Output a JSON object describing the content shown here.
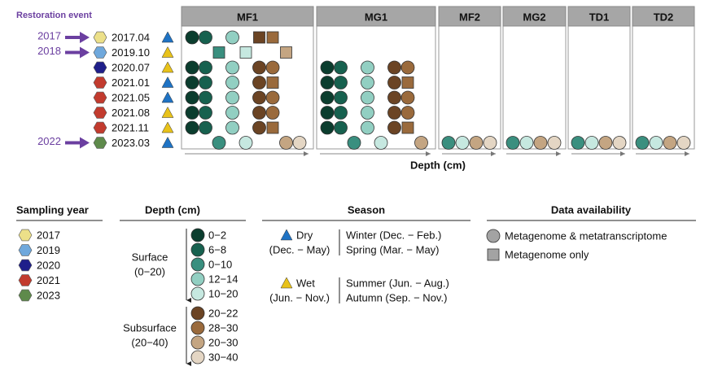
{
  "restoration": {
    "title": "Restoration event",
    "title_color": "#6b3fa0",
    "arrow_color": "#6b3fa0",
    "events": [
      {
        "label": "2017",
        "row": 0
      },
      {
        "label": "2018",
        "row": 1
      },
      {
        "label": "2022",
        "row": 7
      }
    ]
  },
  "rows": [
    {
      "date": "2017.04",
      "year": "2017",
      "season": "dry"
    },
    {
      "date": "2019.10",
      "year": "2019",
      "season": "wet"
    },
    {
      "date": "2020.07",
      "year": "2020",
      "season": "wet"
    },
    {
      "date": "2021.01",
      "year": "2021",
      "season": "dry"
    },
    {
      "date": "2021.05",
      "year": "2021",
      "season": "dry"
    },
    {
      "date": "2021.08",
      "year": "2021",
      "season": "wet"
    },
    {
      "date": "2021.11",
      "year": "2021",
      "season": "wet"
    },
    {
      "date": "2023.03",
      "year": "2023",
      "season": "dry"
    }
  ],
  "year_colors": {
    "2017": "#ece089",
    "2019": "#6fa8dc",
    "2020": "#1f1f8a",
    "2021": "#c23b2e",
    "2023": "#5e8a4b"
  },
  "season_colors": {
    "dry": "#1f73c4",
    "wet": "#e8c21a"
  },
  "depth_colors": {
    "0-2": "#0b3d2e",
    "6-8": "#17614f",
    "0-10": "#3a8f7f",
    "12-14": "#92cfc2",
    "10-20": "#c6e8e0",
    "20-22": "#6b4424",
    "28-30": "#9a6a3c",
    "20-30": "#c4a582",
    "30-40": "#e4d6c4"
  },
  "sites": [
    {
      "name": "MF1",
      "width": "wide",
      "data": [
        [
          [
            "0-2",
            "c"
          ],
          [
            "6-8",
            "c"
          ],
          null,
          [
            "12-14",
            "c"
          ],
          null,
          [
            "20-22",
            "s"
          ],
          [
            "28-30",
            "s"
          ],
          null,
          null
        ],
        [
          null,
          null,
          [
            "0-10",
            "s"
          ],
          null,
          [
            "10-20",
            "s"
          ],
          null,
          null,
          [
            "20-30",
            "s"
          ],
          null
        ],
        [
          [
            "0-2",
            "c"
          ],
          [
            "6-8",
            "c"
          ],
          null,
          [
            "12-14",
            "c"
          ],
          null,
          [
            "20-22",
            "c"
          ],
          [
            "28-30",
            "c"
          ],
          null,
          null
        ],
        [
          [
            "0-2",
            "c"
          ],
          [
            "6-8",
            "c"
          ],
          null,
          [
            "12-14",
            "c"
          ],
          null,
          [
            "20-22",
            "c"
          ],
          [
            "28-30",
            "s"
          ],
          null,
          null
        ],
        [
          [
            "0-2",
            "c"
          ],
          [
            "6-8",
            "c"
          ],
          null,
          [
            "12-14",
            "c"
          ],
          null,
          [
            "20-22",
            "c"
          ],
          [
            "28-30",
            "c"
          ],
          null,
          null
        ],
        [
          [
            "0-2",
            "c"
          ],
          [
            "6-8",
            "c"
          ],
          null,
          [
            "12-14",
            "c"
          ],
          null,
          [
            "20-22",
            "c"
          ],
          [
            "28-30",
            "c"
          ],
          null,
          null
        ],
        [
          [
            "0-2",
            "c"
          ],
          [
            "6-8",
            "c"
          ],
          null,
          [
            "12-14",
            "c"
          ],
          null,
          [
            "20-22",
            "c"
          ],
          [
            "28-30",
            "s"
          ],
          null,
          null
        ],
        [
          null,
          null,
          [
            "0-10",
            "c"
          ],
          null,
          [
            "10-20",
            "c"
          ],
          null,
          null,
          [
            "20-30",
            "c"
          ],
          [
            "30-40",
            "c"
          ]
        ]
      ]
    },
    {
      "name": "MG1",
      "width": "wide",
      "data": [
        [
          null,
          null,
          null,
          null,
          null,
          null,
          null,
          null,
          null
        ],
        [
          null,
          null,
          null,
          null,
          null,
          null,
          null,
          null,
          null
        ],
        [
          [
            "0-2",
            "c"
          ],
          [
            "6-8",
            "c"
          ],
          null,
          [
            "12-14",
            "c"
          ],
          null,
          [
            "20-22",
            "c"
          ],
          [
            "28-30",
            "c"
          ],
          null,
          null
        ],
        [
          [
            "0-2",
            "c"
          ],
          [
            "6-8",
            "c"
          ],
          null,
          [
            "12-14",
            "c"
          ],
          null,
          [
            "20-22",
            "c"
          ],
          [
            "28-30",
            "s"
          ],
          null,
          null
        ],
        [
          [
            "0-2",
            "c"
          ],
          [
            "6-8",
            "c"
          ],
          null,
          [
            "12-14",
            "c"
          ],
          null,
          [
            "20-22",
            "c"
          ],
          [
            "28-30",
            "c"
          ],
          null,
          null
        ],
        [
          [
            "0-2",
            "c"
          ],
          [
            "6-8",
            "c"
          ],
          null,
          [
            "12-14",
            "c"
          ],
          null,
          [
            "20-22",
            "c"
          ],
          [
            "28-30",
            "c"
          ],
          null,
          null
        ],
        [
          [
            "0-2",
            "c"
          ],
          [
            "6-8",
            "c"
          ],
          null,
          [
            "12-14",
            "c"
          ],
          null,
          [
            "20-22",
            "c"
          ],
          [
            "28-30",
            "s"
          ],
          null,
          null
        ],
        [
          null,
          null,
          [
            "0-10",
            "c"
          ],
          null,
          [
            "10-20",
            "c"
          ],
          null,
          null,
          [
            "20-30",
            "c"
          ],
          null
        ]
      ]
    },
    {
      "name": "MF2",
      "width": "narrow",
      "data": [
        [
          [
            "0-10",
            "c"
          ],
          [
            "10-20",
            "c"
          ],
          [
            "20-30",
            "c"
          ],
          [
            "30-40",
            "c"
          ]
        ]
      ]
    },
    {
      "name": "MG2",
      "width": "narrow",
      "data": [
        [
          [
            "0-10",
            "c"
          ],
          [
            "10-20",
            "c"
          ],
          [
            "20-30",
            "c"
          ],
          [
            "30-40",
            "c"
          ]
        ]
      ]
    },
    {
      "name": "TD1",
      "width": "narrow",
      "data": [
        [
          [
            "0-10",
            "c"
          ],
          [
            "10-20",
            "c"
          ],
          [
            "20-30",
            "c"
          ],
          [
            "30-40",
            "c"
          ]
        ]
      ]
    },
    {
      "name": "TD2",
      "width": "narrow",
      "data": [
        [
          [
            "0-10",
            "c"
          ],
          [
            "10-20",
            "c"
          ],
          [
            "20-30",
            "c"
          ],
          [
            "30-40",
            "c"
          ]
        ]
      ]
    }
  ],
  "x_axis_label": "Depth (cm)",
  "legend": {
    "sampling_year": {
      "title": "Sampling year",
      "items": [
        "2017",
        "2019",
        "2020",
        "2021",
        "2023"
      ]
    },
    "depth": {
      "title": "Depth (cm)",
      "groups": [
        {
          "label1": "Surface",
          "label2": "(0−20)",
          "items": [
            {
              "key": "0-2",
              "label": "0−2"
            },
            {
              "key": "6-8",
              "label": "6−8"
            },
            {
              "key": "0-10",
              "label": "0−10"
            },
            {
              "key": "12-14",
              "label": "12−14"
            },
            {
              "key": "10-20",
              "label": "10−20"
            }
          ]
        },
        {
          "label1": "Subsurface",
          "label2": "(20−40)",
          "items": [
            {
              "key": "20-22",
              "label": "20−22"
            },
            {
              "key": "28-30",
              "label": "28−30"
            },
            {
              "key": "20-30",
              "label": "20−30"
            },
            {
              "key": "30-40",
              "label": "30−40"
            }
          ]
        }
      ]
    },
    "season": {
      "title": "Season",
      "groups": [
        {
          "season": "dry",
          "name": "Dry",
          "range": "(Dec. − May)",
          "lines": [
            "Winter (Dec. − Feb.)",
            "Spring (Mar. − May)"
          ]
        },
        {
          "season": "wet",
          "name": "Wet",
          "range": "(Jun. − Nov.)",
          "lines": [
            "Summer (Jun. − Aug.)",
            "Autumn (Sep. − Nov.)"
          ]
        }
      ]
    },
    "availability": {
      "title": "Data availability",
      "items": [
        {
          "shape": "c",
          "label": "Metagenome & metatranscriptome"
        },
        {
          "shape": "s",
          "label": "Metagenome only"
        }
      ]
    }
  }
}
